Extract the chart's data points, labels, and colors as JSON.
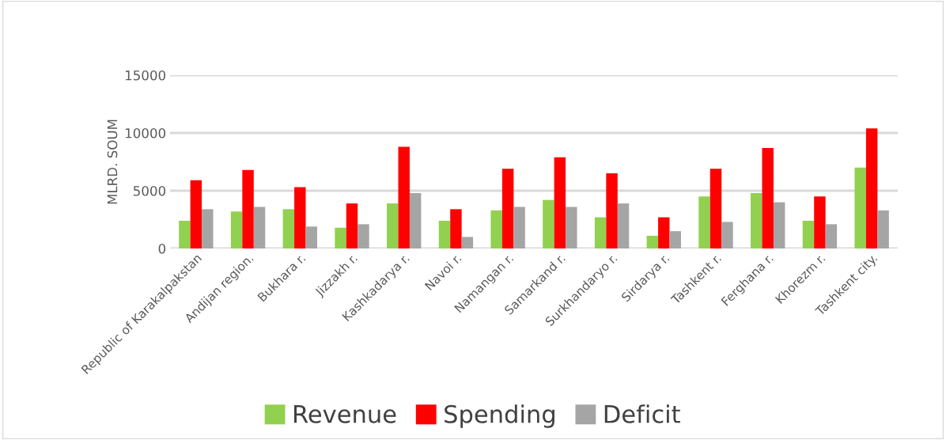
{
  "chart_data": {
    "type": "bar",
    "ylabel": "MLRD. SOUM",
    "categories": [
      "Republic of Karakalpakstan",
      "Andijan region.",
      "Bukhara r.",
      "Jizzakh r.",
      "Kashkadarya r.",
      "Navoi r.",
      "Namangan r.",
      "Samarkand r.",
      "Surkhandaryo r.",
      "Sirdarya r.",
      "Tashkent r.",
      "Ferghana r.",
      "Khorezm r.",
      "Tashkent city."
    ],
    "series": [
      {
        "name": "Revenue",
        "color": "#92d050",
        "values": [
          2400,
          3200,
          3400,
          1800,
          3900,
          2400,
          3300,
          4200,
          2700,
          1100,
          4500,
          4800,
          2400,
          7000
        ]
      },
      {
        "name": "Spending",
        "color": "#ff0000",
        "values": [
          5900,
          6800,
          5300,
          3900,
          8800,
          3400,
          6900,
          7900,
          6500,
          2700,
          6900,
          8700,
          4500,
          10400
        ]
      },
      {
        "name": "Deficit",
        "color": "#a5a5a5",
        "values": [
          3400,
          3600,
          1900,
          2100,
          4800,
          1000,
          3600,
          3600,
          3900,
          1500,
          2300,
          4000,
          2100,
          3300
        ]
      }
    ],
    "ylim": [
      0,
      15000
    ],
    "yticks": [
      0,
      5000,
      10000,
      15000
    ],
    "grid": "y",
    "legend": "bottom"
  }
}
